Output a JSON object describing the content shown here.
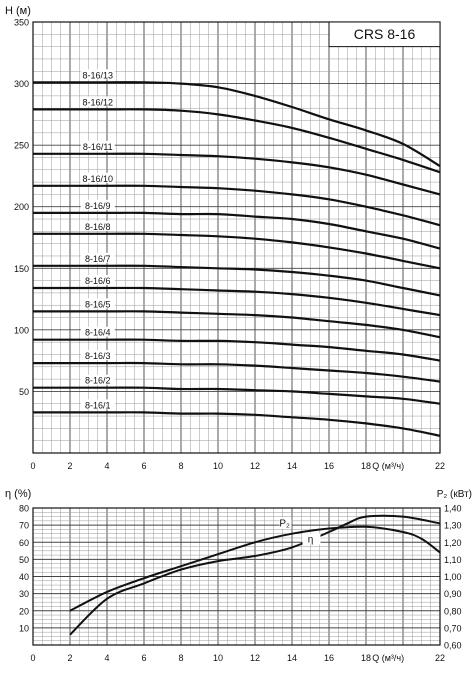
{
  "chart_data": [
    {
      "type": "line",
      "title": "CRS 8-16",
      "ylabel": "H (м)",
      "xlabel": "Q (м³/ч)",
      "xlim": [
        0,
        22
      ],
      "ylim": [
        0,
        350
      ],
      "x_ticks": [
        "0",
        "2",
        "4",
        "6",
        "8",
        "10",
        "12",
        "14",
        "16",
        "18",
        "22"
      ],
      "y_ticks": [
        "50",
        "100",
        "150",
        "200",
        "250",
        "300",
        "350"
      ],
      "grid": true,
      "x": [
        0,
        2,
        4,
        6,
        8,
        10,
        12,
        14,
        16,
        18,
        20,
        22
      ],
      "series": [
        {
          "name": "8-16/13",
          "values": [
            301,
            301,
            301,
            301,
            300,
            297,
            290,
            281,
            271,
            262,
            251,
            233
          ]
        },
        {
          "name": "8-16/12",
          "values": [
            279,
            279,
            279,
            279,
            278,
            275,
            270,
            264,
            256,
            247,
            238,
            228
          ]
        },
        {
          "name": "8-16/11",
          "values": [
            243,
            243,
            243,
            243,
            242,
            241,
            239,
            236,
            232,
            226,
            218,
            210
          ]
        },
        {
          "name": "8-16/10",
          "values": [
            217,
            217,
            217,
            217,
            216,
            215,
            213,
            210,
            206,
            200,
            193,
            185
          ]
        },
        {
          "name": "8-16/9",
          "values": [
            195,
            195,
            195,
            195,
            194,
            194,
            192,
            190,
            186,
            180,
            174,
            166
          ]
        },
        {
          "name": "8-16/8",
          "values": [
            178,
            178,
            178,
            178,
            177,
            176,
            174,
            171,
            167,
            162,
            156,
            150
          ]
        },
        {
          "name": "8-16/7",
          "values": [
            152,
            152,
            152,
            152,
            151,
            150,
            149,
            147,
            144,
            140,
            134,
            128
          ]
        },
        {
          "name": "8-16/6",
          "values": [
            134,
            134,
            134,
            134,
            133,
            132,
            131,
            129,
            126,
            122,
            117,
            112
          ]
        },
        {
          "name": "8-16/5",
          "values": [
            115,
            115,
            115,
            115,
            114,
            113,
            112,
            110,
            107,
            104,
            100,
            94
          ]
        },
        {
          "name": "8-16/4",
          "values": [
            92,
            92,
            92,
            92,
            91,
            91,
            90,
            88,
            86,
            83,
            80,
            75
          ]
        },
        {
          "name": "8-16/3",
          "values": [
            73,
            73,
            73,
            73,
            72,
            72,
            71,
            69,
            67,
            65,
            62,
            58
          ]
        },
        {
          "name": "8-16/2",
          "values": [
            53,
            53,
            53,
            53,
            52,
            52,
            51,
            50,
            48,
            46,
            44,
            40
          ]
        },
        {
          "name": "8-16/1",
          "values": [
            33,
            33,
            33,
            33,
            32,
            32,
            31,
            29,
            27,
            24,
            20,
            14
          ]
        }
      ]
    },
    {
      "type": "line",
      "title": "",
      "ylabel": "η (%)",
      "ylabel_right": "P₂ (кВт)",
      "xlabel": "Q (м³/ч)",
      "xlim": [
        0,
        22
      ],
      "ylim": [
        0,
        80
      ],
      "ylim_right": [
        0.6,
        1.4
      ],
      "x_ticks": [
        "0",
        "2",
        "4",
        "6",
        "8",
        "10",
        "12",
        "14",
        "16",
        "18",
        "22"
      ],
      "y_ticks": [
        "10",
        "20",
        "30",
        "40",
        "50",
        "60",
        "70",
        "80"
      ],
      "y_ticks_right": [
        "0,60",
        "0,70",
        "0,80",
        "0,90",
        "1,00",
        "1,10",
        "1,20",
        "1,30",
        "1,40"
      ],
      "grid": true,
      "series": [
        {
          "name": "η",
          "axis": "left",
          "x": [
            2,
            4,
            6,
            8,
            10,
            12,
            14,
            16,
            17,
            18,
            20,
            22
          ],
          "values": [
            6,
            27,
            36,
            44,
            49,
            52,
            57,
            66,
            71,
            75,
            75,
            71
          ]
        },
        {
          "name": "P₂",
          "axis": "right",
          "x": [
            2,
            4,
            6,
            8,
            10,
            12,
            14,
            16,
            18,
            20,
            21,
            22
          ],
          "values": [
            0.8,
            0.91,
            0.99,
            1.06,
            1.13,
            1.2,
            1.25,
            1.28,
            1.29,
            1.26,
            1.22,
            1.14
          ]
        }
      ]
    }
  ]
}
